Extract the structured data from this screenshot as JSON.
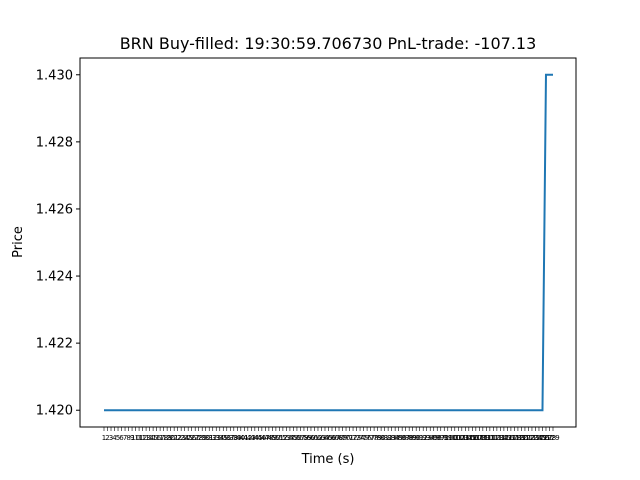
{
  "chart_data": {
    "type": "line",
    "title": "BRN  Buy-filled:  19:30:59.706730  PnL-trade:  -107.13",
    "xlabel": "Time (s)",
    "ylabel": "Price",
    "ylim": [
      1.4195,
      1.4305
    ],
    "y_ticks": [
      "1.420",
      "1.422",
      "1.424",
      "1.426",
      "1.428",
      "1.430"
    ],
    "x_tick_count": 129,
    "x_tick_labels": [
      "1",
      "2",
      "3",
      "4",
      "5",
      "6",
      "7",
      "8",
      "9",
      "10",
      "11",
      "12",
      "13",
      "14",
      "15",
      "16",
      "17",
      "18",
      "19",
      "20",
      "21",
      "22",
      "23",
      "24",
      "25",
      "26",
      "27",
      "28",
      "29",
      "30",
      "31",
      "32",
      "33",
      "34",
      "35",
      "36",
      "37",
      "38",
      "39",
      "40",
      "41",
      "42",
      "43",
      "44",
      "45",
      "46",
      "47",
      "48",
      "49",
      "50",
      "51",
      "52",
      "53",
      "54",
      "55",
      "56",
      "57",
      "58",
      "59",
      "60",
      "61",
      "62",
      "63",
      "64",
      "65",
      "66",
      "67",
      "68",
      "69",
      "70",
      "71",
      "72",
      "73",
      "74",
      "75",
      "76",
      "77",
      "78",
      "79",
      "80",
      "81",
      "82",
      "83",
      "84",
      "85",
      "86",
      "87",
      "88",
      "89",
      "90",
      "91",
      "92",
      "93",
      "94",
      "95",
      "96",
      "97",
      "98",
      "99",
      "100",
      "101",
      "102",
      "103",
      "104",
      "105",
      "106",
      "107",
      "108",
      "109",
      "110",
      "111",
      "112",
      "113",
      "114",
      "115",
      "116",
      "117",
      "118",
      "119",
      "120",
      "121",
      "122",
      "123",
      "124",
      "125",
      "126",
      "127",
      "128",
      "129"
    ],
    "grid": false,
    "line_color": "#1f77b4",
    "series": [
      {
        "x": [
          1,
          126,
          127,
          129
        ],
        "y": [
          1.42,
          1.42,
          1.43,
          1.43
        ]
      }
    ]
  }
}
